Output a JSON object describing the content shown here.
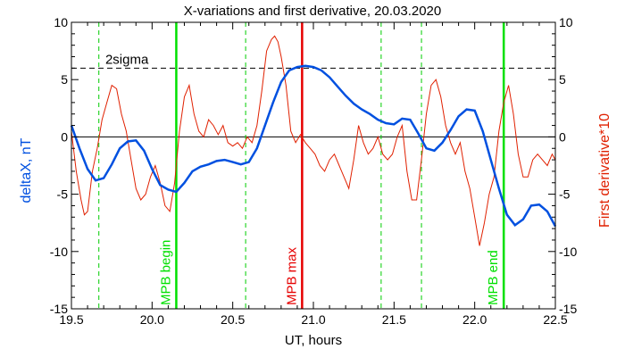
{
  "chart_data": {
    "type": "line",
    "title": "X-variations and first derivative, 20.03.2020",
    "xlabel": "UT, hours",
    "ylabel_left": "deltaX, nT",
    "ylabel_right": "First derivative*10",
    "xlim": [
      19.5,
      22.5
    ],
    "ylim": [
      -15,
      10
    ],
    "x_ticks": [
      "19.5",
      "20.0",
      "20.5",
      "21.0",
      "21.5",
      "22.0",
      "22.5"
    ],
    "y_ticks_left": [
      "-15",
      "-10",
      "-5",
      "0",
      "5",
      "10"
    ],
    "y_ticks_right": [
      "-15",
      "-10",
      "-5",
      "0",
      "5",
      "10"
    ],
    "sigma": {
      "label": "2sigma",
      "value": 6.0
    },
    "zero_line": 0,
    "green_dashed_lines": [
      19.67,
      20.58,
      21.42,
      21.67
    ],
    "events": [
      {
        "label": "MPB begin",
        "x": 20.15,
        "color": "#00e000"
      },
      {
        "label": "MPB max",
        "x": 20.93,
        "color": "#e60000"
      },
      {
        "label": "MPB end",
        "x": 22.18,
        "color": "#00e000"
      }
    ],
    "series": [
      {
        "name": "deltaX",
        "color": "#0050e0",
        "x": [
          19.5,
          19.55,
          19.6,
          19.65,
          19.7,
          19.75,
          19.8,
          19.85,
          19.9,
          19.95,
          20.0,
          20.05,
          20.1,
          20.15,
          20.2,
          20.25,
          20.3,
          20.35,
          20.4,
          20.45,
          20.5,
          20.55,
          20.6,
          20.65,
          20.7,
          20.75,
          20.8,
          20.85,
          20.9,
          20.95,
          21.0,
          21.05,
          21.1,
          21.15,
          21.2,
          21.25,
          21.3,
          21.35,
          21.4,
          21.45,
          21.5,
          21.55,
          21.6,
          21.65,
          21.7,
          21.75,
          21.8,
          21.85,
          21.9,
          21.95,
          22.0,
          22.05,
          22.1,
          22.15,
          22.2,
          22.25,
          22.3,
          22.35,
          22.4,
          22.45,
          22.5
        ],
        "y": [
          1.0,
          -1.0,
          -2.8,
          -3.8,
          -3.6,
          -2.4,
          -1.0,
          -0.4,
          -0.3,
          -1.2,
          -2.8,
          -4.2,
          -4.6,
          -4.8,
          -4.0,
          -3.0,
          -2.6,
          -2.4,
          -2.1,
          -2.0,
          -2.2,
          -2.4,
          -2.2,
          -1.0,
          1.0,
          3.0,
          4.8,
          5.8,
          6.1,
          6.2,
          6.1,
          5.8,
          5.2,
          4.4,
          3.6,
          2.9,
          2.4,
          2.0,
          1.5,
          1.2,
          1.1,
          1.6,
          1.5,
          0.3,
          -1.0,
          -1.2,
          -0.5,
          0.6,
          1.8,
          2.4,
          2.3,
          0.5,
          -2.0,
          -4.5,
          -6.8,
          -7.7,
          -7.2,
          -6.0,
          -5.9,
          -6.5,
          -7.8
        ]
      },
      {
        "name": "First derivative*10",
        "color": "#e02000",
        "x": [
          19.5,
          19.53,
          19.56,
          19.58,
          19.6,
          19.63,
          19.66,
          19.69,
          19.72,
          19.75,
          19.78,
          19.81,
          19.84,
          19.87,
          19.9,
          19.93,
          19.96,
          19.99,
          20.02,
          20.05,
          20.08,
          20.11,
          20.14,
          20.17,
          20.2,
          20.23,
          20.26,
          20.29,
          20.32,
          20.35,
          20.38,
          20.41,
          20.44,
          20.47,
          20.5,
          20.53,
          20.56,
          20.59,
          20.62,
          20.65,
          20.68,
          20.71,
          20.74,
          20.76,
          20.78,
          20.8,
          20.83,
          20.86,
          20.89,
          20.92,
          20.95,
          20.98,
          21.01,
          21.04,
          21.07,
          21.1,
          21.13,
          21.16,
          21.19,
          21.22,
          21.25,
          21.28,
          21.31,
          21.34,
          21.37,
          21.4,
          21.43,
          21.46,
          21.49,
          21.52,
          21.55,
          21.58,
          21.61,
          21.64,
          21.67,
          21.7,
          21.73,
          21.76,
          21.79,
          21.82,
          21.85,
          21.88,
          21.91,
          21.94,
          21.97,
          22.0,
          22.03,
          22.06,
          22.09,
          22.12,
          22.15,
          22.18,
          22.21,
          22.24,
          22.27,
          22.3,
          22.33,
          22.36,
          22.39,
          22.42,
          22.45,
          22.48,
          22.5
        ],
        "y": [
          0.5,
          -3.0,
          -5.5,
          -6.8,
          -6.5,
          -3.0,
          -1.0,
          1.5,
          3.0,
          4.5,
          4.2,
          2.0,
          0.5,
          -2.0,
          -4.5,
          -5.5,
          -5.0,
          -3.5,
          -2.5,
          -4.0,
          -6.0,
          -6.5,
          -4.0,
          0.5,
          3.5,
          4.5,
          2.0,
          0.5,
          0.0,
          1.5,
          1.0,
          0.2,
          1.0,
          -0.5,
          -0.8,
          -0.5,
          -1.0,
          0.0,
          -0.5,
          1.0,
          4.0,
          7.5,
          8.5,
          8.8,
          8.3,
          7.0,
          4.5,
          0.5,
          -0.5,
          0.2,
          -0.5,
          -1.0,
          -1.5,
          -2.5,
          -3.0,
          -2.0,
          -1.5,
          -2.5,
          -3.5,
          -4.5,
          -2.0,
          1.0,
          -0.5,
          -1.5,
          -1.0,
          0.0,
          -1.5,
          -2.0,
          -1.5,
          0.0,
          1.0,
          -3.0,
          -5.5,
          -5.5,
          -2.0,
          2.0,
          4.5,
          5.0,
          3.5,
          1.0,
          -0.5,
          -1.5,
          -0.5,
          -3.0,
          -4.5,
          -7.0,
          -9.5,
          -7.5,
          -5.0,
          -3.5,
          0.5,
          3.0,
          4.5,
          2.0,
          -1.5,
          -3.5,
          -3.5,
          -2.0,
          -1.5,
          -2.0,
          -2.5,
          -1.5,
          -2.0
        ]
      }
    ]
  }
}
